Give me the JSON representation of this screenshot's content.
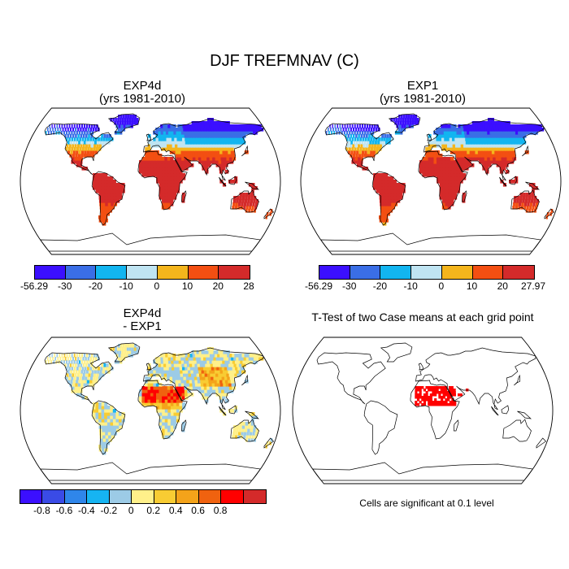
{
  "title": "DJF TREFMNAV (C)",
  "panels": [
    {
      "id": "p1",
      "title": [
        "EXP4d",
        "(yrs 1981-2010)"
      ],
      "type": "temperature"
    },
    {
      "id": "p2",
      "title": [
        "EXP1",
        "(yrs 1981-2010)"
      ],
      "type": "temperature"
    },
    {
      "id": "p3",
      "title": [
        "EXP4d",
        "- EXP1"
      ],
      "type": "difference"
    },
    {
      "id": "p4",
      "title": [
        "T-Test of two Case means at each grid point"
      ],
      "type": "ttest"
    }
  ],
  "colorbars": {
    "temp_a": {
      "colors": [
        "#3b0fff",
        "#3a6ee6",
        "#12b5f0",
        "#bfe4f2",
        "#f4b51c",
        "#f34f12",
        "#d42a2a"
      ],
      "labels": [
        "-56.29",
        "-30",
        "-20",
        "-10",
        "0",
        "10",
        "20",
        "28"
      ]
    },
    "temp_b": {
      "colors": [
        "#3b0fff",
        "#3a6ee6",
        "#12b5f0",
        "#bfe4f2",
        "#f4b51c",
        "#f34f12",
        "#d42a2a"
      ],
      "labels": [
        "-56.29",
        "-30",
        "-20",
        "-10",
        "0",
        "10",
        "20",
        "27.97"
      ]
    },
    "diff": {
      "colors": [
        "#3b0fff",
        "#3a4be6",
        "#2f86ea",
        "#16b4f2",
        "#9ccbe6",
        "#fff08a",
        "#f8cc33",
        "#f4a31a",
        "#f0620f",
        "#ff0000",
        "#d42a2a"
      ],
      "labels": [
        "-0.8",
        "-0.6",
        "-0.4",
        "-0.2",
        "0",
        "0.2",
        "0.4",
        "0.6",
        "0.8"
      ]
    }
  },
  "significance_note": "Cells are significant at 0.1 level",
  "significance_color": "#ff0000"
}
